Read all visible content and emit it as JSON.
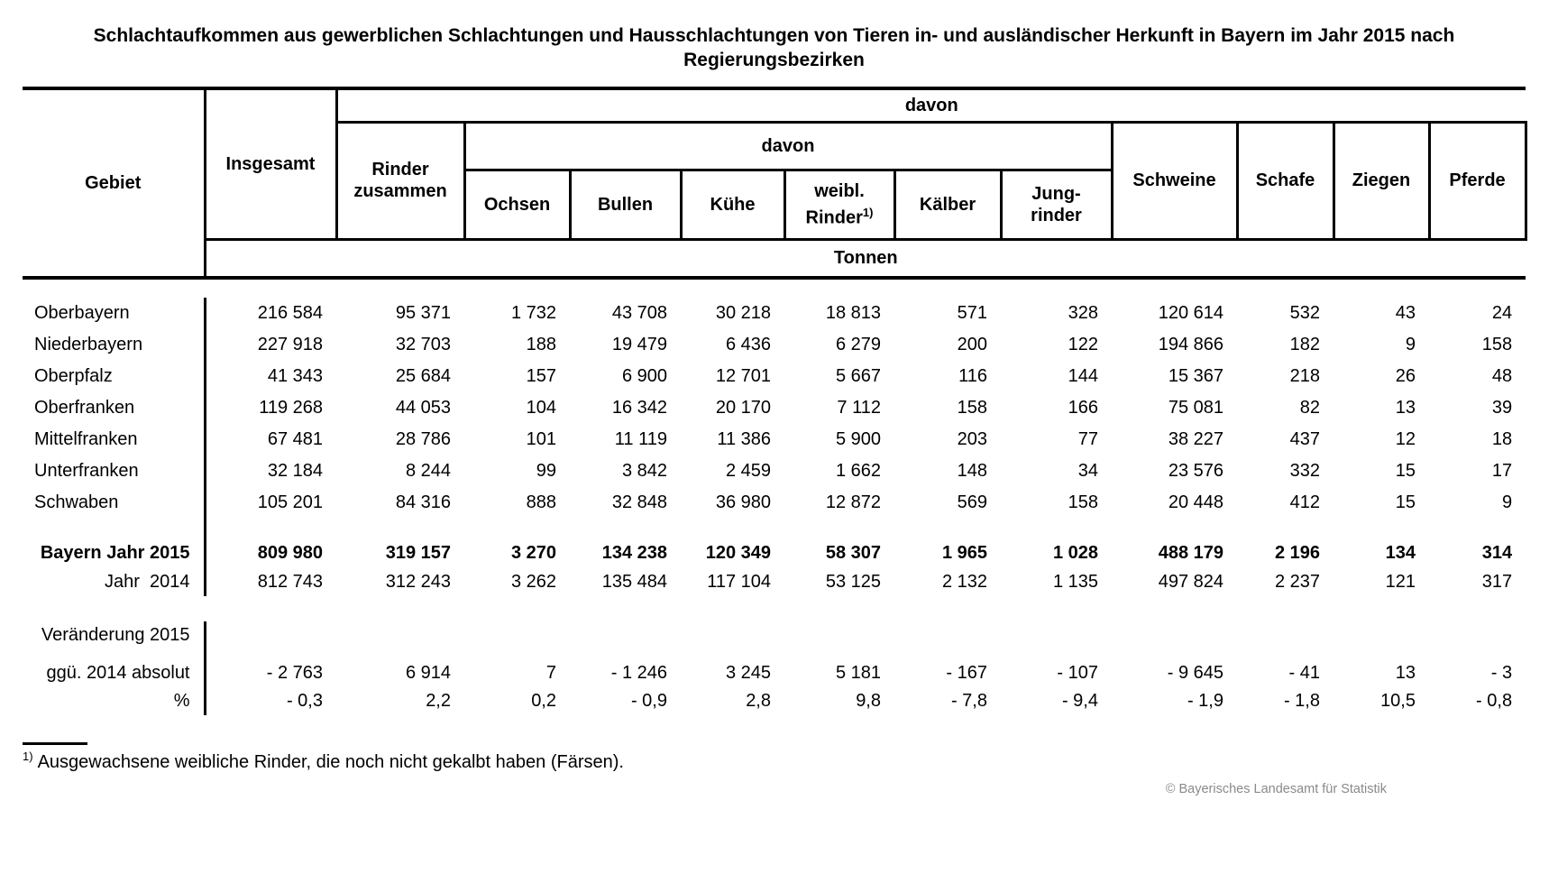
{
  "page": {
    "title": "Schlachtaufkommen aus gewerblichen Schlachtungen und Hausschlachtungen von Tieren in- und ausländischer Herkunft in Bayern im Jahr 2015 nach Regierungsbezirken",
    "footnote_marker": "1)",
    "footnote_text": "Ausgewachsene weibliche Rinder, die noch nicht gekalbt haben (Färsen).",
    "copyright": "© Bayerisches Landesamt für Statistik"
  },
  "colors": {
    "text": "#000000",
    "copyright_gray": "#8a8a8a",
    "background": "#ffffff"
  },
  "table": {
    "unit_row": "Tonnen",
    "header": {
      "gebiet": "Gebiet",
      "insgesamt": "Insgesamt",
      "davon_outer": "davon",
      "davon_inner": "davon",
      "rinder_line1": "Rinder",
      "rinder_line2": "zusammen",
      "ochsen": "Ochsen",
      "bullen": "Bullen",
      "kuehe": "Kühe",
      "weibl_line1": "weibl.",
      "weibl_line2": "Rinder",
      "weibl_sup": "1)",
      "kaelber": "Kälber",
      "jung_line1": "Jung-",
      "jung_line2": "rinder",
      "schweine": "Schweine",
      "schafe": "Schafe",
      "ziegen": "Ziegen",
      "pferde": "Pferde"
    },
    "district_rows": [
      {
        "label": "Oberbayern",
        "values": [
          "216 584",
          "95 371",
          "1 732",
          "43 708",
          "30 218",
          "18 813",
          "571",
          "328",
          "120 614",
          "532",
          "43",
          "24"
        ]
      },
      {
        "label": "Niederbayern",
        "values": [
          "227 918",
          "32 703",
          "188",
          "19 479",
          "6 436",
          "6 279",
          "200",
          "122",
          "194 866",
          "182",
          "9",
          "158"
        ]
      },
      {
        "label": "Oberpfalz",
        "values": [
          "41 343",
          "25 684",
          "157",
          "6 900",
          "12 701",
          "5 667",
          "116",
          "144",
          "15 367",
          "218",
          "26",
          "48"
        ]
      },
      {
        "label": "Oberfranken",
        "values": [
          "119 268",
          "44 053",
          "104",
          "16 342",
          "20 170",
          "7 112",
          "158",
          "166",
          "75 081",
          "82",
          "13",
          "39"
        ]
      },
      {
        "label": "Mittelfranken",
        "values": [
          "67 481",
          "28 786",
          "101",
          "11 119",
          "11 386",
          "5 900",
          "203",
          "77",
          "38 227",
          "437",
          "12",
          "18"
        ]
      },
      {
        "label": "Unterfranken",
        "values": [
          "32 184",
          "8 244",
          "99",
          "3 842",
          "2 459",
          "1 662",
          "148",
          "34",
          "23 576",
          "332",
          "15",
          "17"
        ]
      },
      {
        "label": "Schwaben",
        "values": [
          "105 201",
          "84 316",
          "888",
          "32 848",
          "36 980",
          "12 872",
          "569",
          "158",
          "20 448",
          "412",
          "15",
          "9"
        ]
      }
    ],
    "summary_rows": [
      {
        "label": "Bayern Jahr 2015",
        "bold": true,
        "values": [
          "809 980",
          "319 157",
          "3 270",
          "134 238",
          "120 349",
          "58 307",
          "1 965",
          "1 028",
          "488 179",
          "2 196",
          "134",
          "314"
        ]
      },
      {
        "label": "Jahr  2014",
        "bold": false,
        "values": [
          "812 743",
          "312 243",
          "3 262",
          "135 484",
          "117 104",
          "53 125",
          "2 132",
          "1 135",
          "497 824",
          "2 237",
          "121",
          "317"
        ]
      }
    ],
    "change_section": {
      "section_label": "Veränderung 2015",
      "rows": [
        {
          "label": "ggü. 2014 absolut",
          "values": [
            "- 2 763",
            "6 914",
            "7",
            "- 1 246",
            "3 245",
            "5 181",
            "- 167",
            "- 107",
            "- 9 645",
            "- 41",
            "13",
            "- 3"
          ]
        },
        {
          "label": "%",
          "values": [
            "- 0,3",
            "2,2",
            "0,2",
            "- 0,9",
            "2,8",
            "9,8",
            "- 7,8",
            "- 9,4",
            "- 1,9",
            "- 1,8",
            "10,5",
            "- 0,8"
          ]
        }
      ]
    }
  }
}
